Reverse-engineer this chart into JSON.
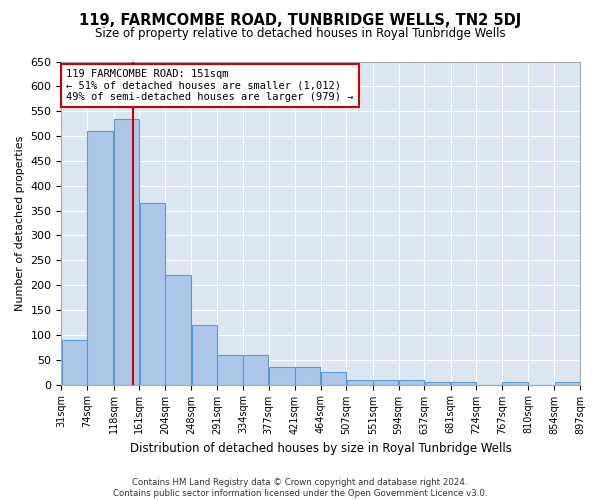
{
  "title": "119, FARMCOMBE ROAD, TUNBRIDGE WELLS, TN2 5DJ",
  "subtitle": "Size of property relative to detached houses in Royal Tunbridge Wells",
  "xlabel": "Distribution of detached houses by size in Royal Tunbridge Wells",
  "ylabel": "Number of detached properties",
  "footer_line1": "Contains HM Land Registry data © Crown copyright and database right 2024.",
  "footer_line2": "Contains public sector information licensed under the Open Government Licence v3.0.",
  "annotation_line1": "119 FARMCOMBE ROAD: 151sqm",
  "annotation_line2": "← 51% of detached houses are smaller (1,012)",
  "annotation_line3": "49% of semi-detached houses are larger (979) →",
  "property_size": 151,
  "bar_edges": [
    31,
    74,
    118,
    161,
    204,
    248,
    291,
    334,
    377,
    421,
    464,
    507,
    551,
    594,
    637,
    681,
    724,
    767,
    810,
    854,
    897
  ],
  "bar_heights": [
    90,
    510,
    535,
    365,
    220,
    120,
    60,
    60,
    35,
    35,
    25,
    10,
    10,
    10,
    5,
    5,
    0,
    5,
    0,
    5
  ],
  "bar_color": "#aec6e8",
  "bar_edge_color": "#5b9bd5",
  "red_line_color": "#cc0000",
  "annotation_box_color": "#cc0000",
  "background_color": "#dce6f1",
  "ylim": [
    0,
    650
  ],
  "yticks": [
    0,
    50,
    100,
    150,
    200,
    250,
    300,
    350,
    400,
    450,
    500,
    550,
    600,
    650
  ]
}
